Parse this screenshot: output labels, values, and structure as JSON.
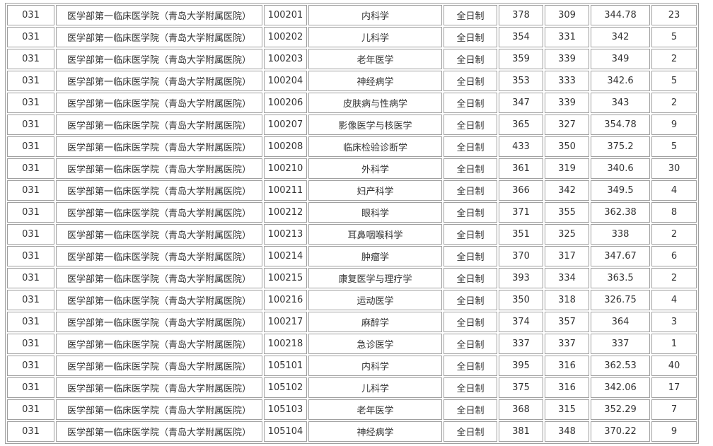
{
  "table": {
    "rows": [
      [
        "031",
        "医学部第一临床医学院（青岛大学附属医院）",
        "100201",
        "内科学",
        "全日制",
        "378",
        "309",
        "344.78",
        "23"
      ],
      [
        "031",
        "医学部第一临床医学院（青岛大学附属医院）",
        "100202",
        "儿科学",
        "全日制",
        "354",
        "331",
        "342",
        "5"
      ],
      [
        "031",
        "医学部第一临床医学院（青岛大学附属医院）",
        "100203",
        "老年医学",
        "全日制",
        "359",
        "339",
        "349",
        "2"
      ],
      [
        "031",
        "医学部第一临床医学院（青岛大学附属医院）",
        "100204",
        "神经病学",
        "全日制",
        "353",
        "333",
        "342.6",
        "5"
      ],
      [
        "031",
        "医学部第一临床医学院（青岛大学附属医院）",
        "100206",
        "皮肤病与性病学",
        "全日制",
        "347",
        "339",
        "343",
        "2"
      ],
      [
        "031",
        "医学部第一临床医学院（青岛大学附属医院）",
        "100207",
        "影像医学与核医学",
        "全日制",
        "365",
        "327",
        "354.78",
        "9"
      ],
      [
        "031",
        "医学部第一临床医学院（青岛大学附属医院）",
        "100208",
        "临床检验诊断学",
        "全日制",
        "433",
        "350",
        "375.2",
        "5"
      ],
      [
        "031",
        "医学部第一临床医学院（青岛大学附属医院）",
        "100210",
        "外科学",
        "全日制",
        "361",
        "319",
        "340.6",
        "30"
      ],
      [
        "031",
        "医学部第一临床医学院（青岛大学附属医院）",
        "100211",
        "妇产科学",
        "全日制",
        "366",
        "342",
        "349.5",
        "4"
      ],
      [
        "031",
        "医学部第一临床医学院（青岛大学附属医院）",
        "100212",
        "眼科学",
        "全日制",
        "371",
        "355",
        "362.38",
        "8"
      ],
      [
        "031",
        "医学部第一临床医学院（青岛大学附属医院）",
        "100213",
        "耳鼻咽喉科学",
        "全日制",
        "351",
        "325",
        "338",
        "2"
      ],
      [
        "031",
        "医学部第一临床医学院（青岛大学附属医院）",
        "100214",
        "肿瘤学",
        "全日制",
        "370",
        "317",
        "347.67",
        "6"
      ],
      [
        "031",
        "医学部第一临床医学院（青岛大学附属医院）",
        "100215",
        "康复医学与理疗学",
        "全日制",
        "393",
        "334",
        "363.5",
        "2"
      ],
      [
        "031",
        "医学部第一临床医学院（青岛大学附属医院）",
        "100216",
        "运动医学",
        "全日制",
        "350",
        "318",
        "326.75",
        "4"
      ],
      [
        "031",
        "医学部第一临床医学院（青岛大学附属医院）",
        "100217",
        "麻醉学",
        "全日制",
        "374",
        "357",
        "364",
        "3"
      ],
      [
        "031",
        "医学部第一临床医学院（青岛大学附属医院）",
        "100218",
        "急诊医学",
        "全日制",
        "337",
        "337",
        "337",
        "1"
      ],
      [
        "031",
        "医学部第一临床医学院（青岛大学附属医院）",
        "105101",
        "内科学",
        "全日制",
        "395",
        "316",
        "362.53",
        "40"
      ],
      [
        "031",
        "医学部第一临床医学院（青岛大学附属医院）",
        "105102",
        "儿科学",
        "全日制",
        "375",
        "316",
        "342.06",
        "17"
      ],
      [
        "031",
        "医学部第一临床医学院（青岛大学附属医院）",
        "105103",
        "老年医学",
        "全日制",
        "368",
        "315",
        "352.29",
        "7"
      ],
      [
        "031",
        "医学部第一临床医学院（青岛大学附属医院）",
        "105104",
        "神经病学",
        "全日制",
        "381",
        "348",
        "370.22",
        "9"
      ]
    ]
  }
}
